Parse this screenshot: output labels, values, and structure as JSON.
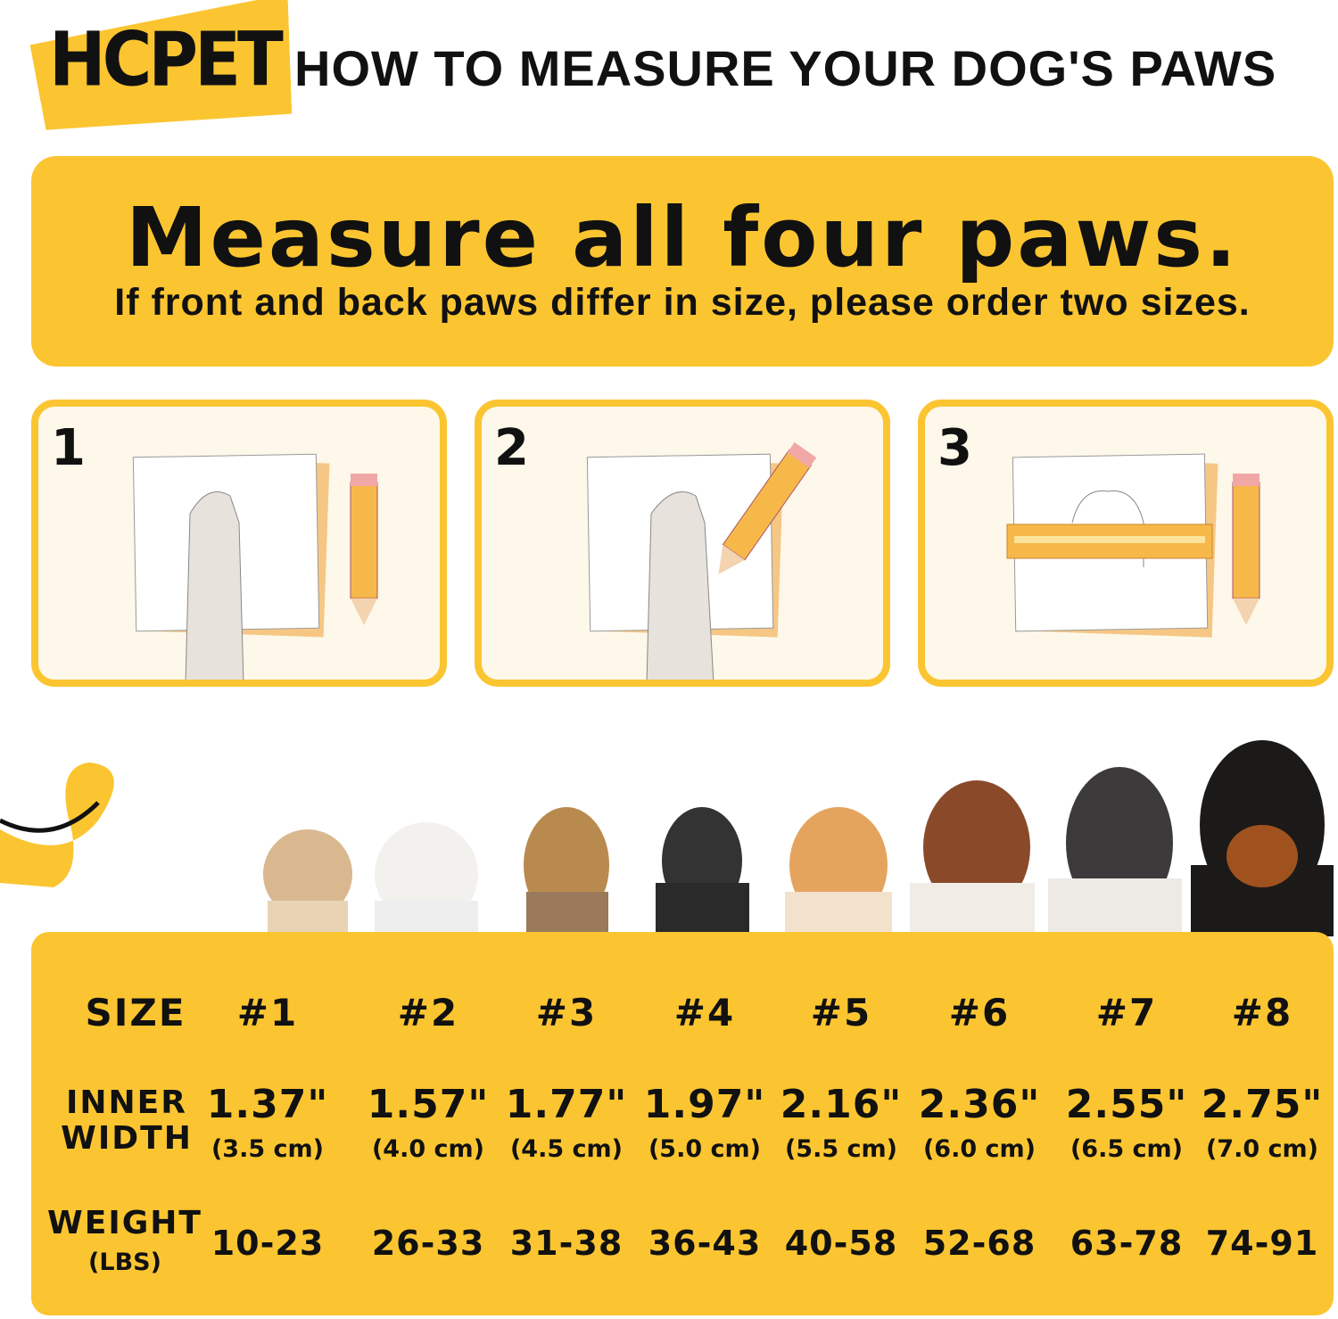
{
  "brand": {
    "logo": "HCPET",
    "accent": "#FBC531"
  },
  "header": {
    "title": "HOW TO MEASURE YOUR DOG'S PAWS"
  },
  "banner": {
    "headline": "Measure all four paws.",
    "subtext": "If front and back paws differ in size, please order two sizes."
  },
  "steps": [
    {
      "number": "1"
    },
    {
      "number": "2"
    },
    {
      "number": "3"
    }
  ],
  "size_chart": {
    "row_labels": {
      "size": "SIZE",
      "inner_width_1": "INNER",
      "inner_width_2": "WIDTH",
      "weight": "WEIGHT",
      "weight_unit": "(LBS)"
    },
    "sizes": [
      {
        "size": "#1",
        "inches": "1.37\"",
        "cm": "(3.5 cm)",
        "weight": "10-23"
      },
      {
        "size": "#2",
        "inches": "1.57\"",
        "cm": "(4.0 cm)",
        "weight": "26-33"
      },
      {
        "size": "#3",
        "inches": "1.77\"",
        "cm": "(4.5 cm)",
        "weight": "31-38"
      },
      {
        "size": "#4",
        "inches": "1.97\"",
        "cm": "(5.0 cm)",
        "weight": "36-43"
      },
      {
        "size": "#5",
        "inches": "2.16\"",
        "cm": "(5.5 cm)",
        "weight": "40-58"
      },
      {
        "size": "#6",
        "inches": "2.36\"",
        "cm": "(6.0 cm)",
        "weight": "52-68"
      },
      {
        "size": "#7",
        "inches": "2.55\"",
        "cm": "(6.5 cm)",
        "weight": "63-78"
      },
      {
        "size": "#8",
        "inches": "2.75\"",
        "cm": "(7.0 cm)",
        "weight": "74-91"
      }
    ]
  }
}
